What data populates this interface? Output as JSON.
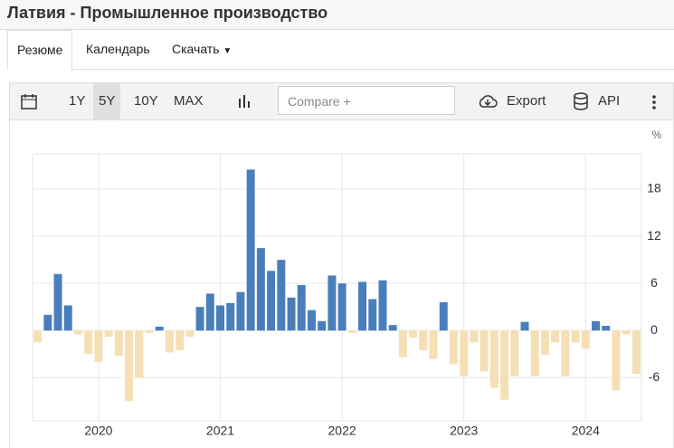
{
  "page": {
    "title": "Латвия - Промышленное производство",
    "tabs": [
      "Резюме",
      "Календарь",
      "Скачать"
    ],
    "ranges": [
      "1Y",
      "5Y",
      "10Y",
      "MAX"
    ],
    "compare_placeholder": "Compare +",
    "export": "Export",
    "api": "API"
  },
  "chart_data": {
    "type": "bar",
    "unit_label": "%",
    "categories": [
      null,
      null,
      null,
      null,
      null,
      null,
      "2020",
      null,
      null,
      null,
      null,
      null,
      null,
      null,
      null,
      null,
      null,
      null,
      "2021",
      null,
      null,
      null,
      null,
      null,
      null,
      null,
      null,
      null,
      null,
      null,
      "2022",
      null,
      null,
      null,
      null,
      null,
      null,
      null,
      null,
      null,
      null,
      null,
      "2023",
      null,
      null,
      null,
      null,
      null,
      null,
      null,
      null,
      null,
      null,
      null,
      "2024",
      null,
      null,
      null,
      null,
      null
    ],
    "values": [
      -1.5,
      2,
      7.2,
      3.2,
      -0.5,
      -3,
      -4,
      -0.8,
      -3.2,
      -9,
      -6,
      -0.3,
      0.5,
      -2.8,
      -2.5,
      -0.8,
      3,
      4.7,
      3.2,
      3.5,
      4.9,
      20.5,
      10.5,
      7.6,
      9,
      4.2,
      5.8,
      2.6,
      1.2,
      7,
      6,
      -0.3,
      6.2,
      4,
      6.4,
      0.7,
      -3.4,
      -0.9,
      -2.5,
      -3.6,
      3.6,
      -4.3,
      -5.8,
      -1.5,
      -5.2,
      -7.3,
      -8.8,
      -5.8,
      1.1,
      -5.8,
      -3.1,
      -1.5,
      -5.8,
      -1.5,
      -2.3,
      1.2,
      0.6,
      -7.6,
      -0.5,
      -5.5
    ],
    "color": "#4a7ebb",
    "negative_color": "#f5dfb4",
    "ylim": [
      -11.5,
      22.5
    ],
    "yticks": [
      -6,
      0,
      6,
      12,
      18
    ],
    "grid": true
  }
}
